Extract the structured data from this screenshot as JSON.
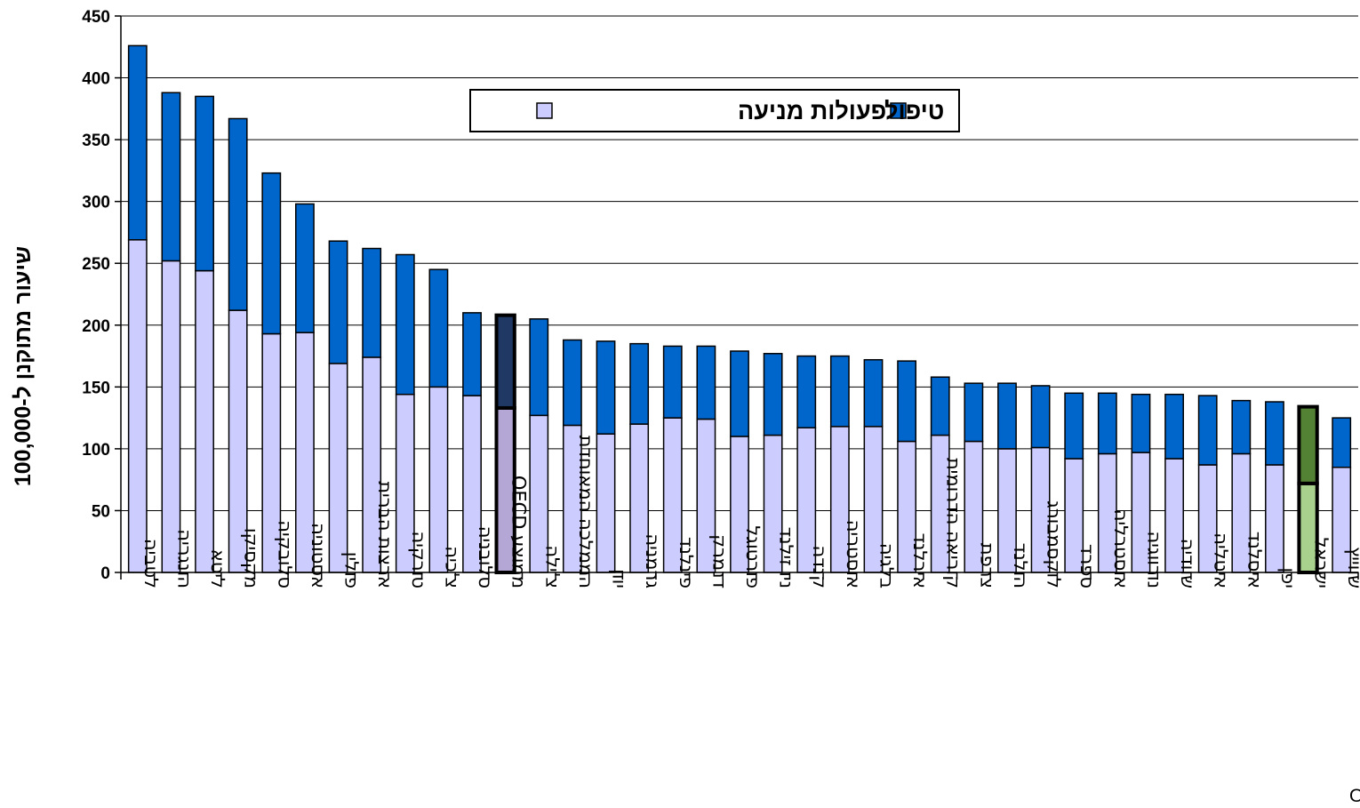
{
  "chart_data": {
    "type": "bar",
    "stacked": true,
    "ylabel": "שיעור מתוקנן ל-100,000",
    "ylim": [
      0,
      450
    ],
    "yticks": [
      0,
      50,
      100,
      150,
      200,
      250,
      300,
      350,
      400,
      450
    ],
    "grid": true,
    "legend_position": "top-center",
    "categories": [
      "לטביה",
      "הונגריה",
      "ליטא",
      "מקסיקו",
      "סלובקיה",
      "אסטוניה",
      "פולין",
      "ארצות הברית",
      "טורקיה",
      "צ'כיה",
      "סלובניה",
      "ממוצע OECD",
      "צ'ילה",
      "הממלכה המאוחדת",
      "יוון",
      "גרמניה",
      "פינלנד",
      "דנמרק",
      "פורטוגל",
      "ניו זילנד",
      "קנדה",
      "אוסטריה",
      "בלגיה",
      "אירלנד",
      "קוריאה הדרומית",
      "צרפת",
      "הולנד",
      "לוקסמבורג",
      "ספרד",
      "אוסטרליה",
      "נורווגיה",
      "שוודיה",
      "איטליה",
      "איסלנד",
      "יפן",
      "ישראל",
      "שווייץ"
    ],
    "series": [
      {
        "name": "פעולות מניעה",
        "color": "#ccccff",
        "values": [
          269,
          252,
          244,
          212,
          193,
          194,
          169,
          174,
          144,
          150,
          143,
          133,
          127,
          119,
          112,
          120,
          125,
          124,
          110,
          111,
          117,
          118,
          118,
          106,
          111,
          106,
          100,
          101,
          92,
          96,
          97,
          92,
          87,
          96,
          87,
          72,
          85
        ]
      },
      {
        "name": "טיפול",
        "color": "#0066cc",
        "values": [
          157,
          136,
          141,
          155,
          130,
          104,
          99,
          88,
          113,
          95,
          67,
          75,
          78,
          69,
          75,
          65,
          58,
          59,
          69,
          66,
          58,
          57,
          54,
          65,
          47,
          47,
          53,
          50,
          53,
          49,
          47,
          52,
          56,
          43,
          51,
          62,
          40
        ]
      }
    ],
    "highlight": {
      "ממוצע OECD": {
        "colors": [
          "#b4a7d6",
          "#1f3864"
        ]
      },
      "ישראל": {
        "colors": [
          "#a9d18e",
          "#548235"
        ]
      }
    },
    "bar_color_default": {
      "lower": "#ccccff",
      "upper": "#0066cc"
    }
  },
  "legend": {
    "items": [
      {
        "label": "טיפול",
        "color": "#0066cc"
      },
      {
        "label": "פעולות מניעה",
        "color": "#ccccff"
      }
    ]
  },
  "source": "מקור: OECD"
}
